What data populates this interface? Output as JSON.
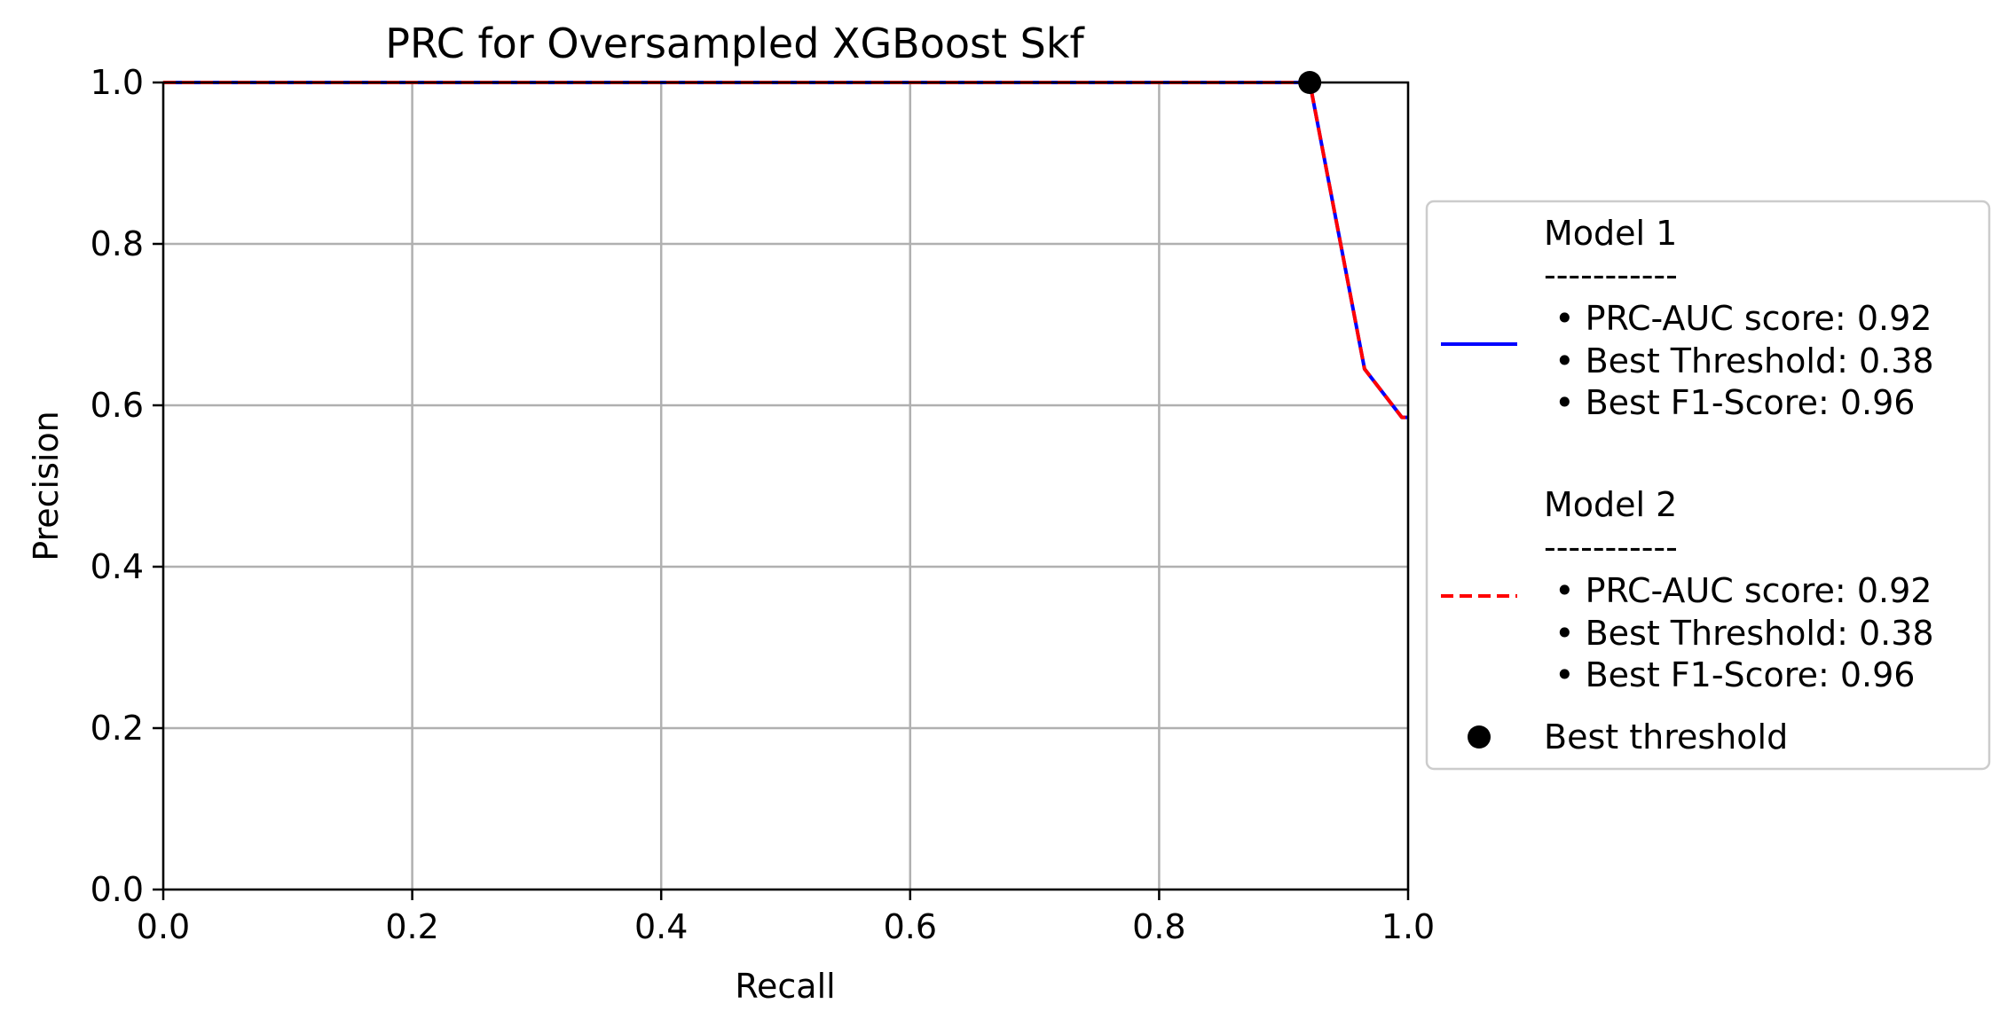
{
  "chart_data": {
    "type": "line",
    "title": "PRC for Oversampled XGBoost Skf",
    "xlabel": "Recall",
    "ylabel": "Precision",
    "xlim": [
      0.0,
      1.0
    ],
    "ylim": [
      0.0,
      1.0
    ],
    "x_ticks": [
      "0.0",
      "0.2",
      "0.4",
      "0.6",
      "0.8",
      "1.0"
    ],
    "y_ticks": [
      "0.0",
      "0.2",
      "0.4",
      "0.6",
      "0.8",
      "1.0"
    ],
    "grid": true,
    "legend_position": "outside right",
    "series": [
      {
        "color": "#0000ff",
        "line_style": "solid",
        "x": [
          0.0,
          0.921,
          0.965,
          0.995,
          1.0
        ],
        "y": [
          1.0,
          1.0,
          0.645,
          0.585,
          0.585
        ],
        "legend_lines": [
          "Model 1",
          "-----------",
          " • PRC-AUC score: 0.92",
          " • Best Threshold: 0.38",
          " • Best F1-Score: 0.96"
        ]
      },
      {
        "color": "#ff0000",
        "line_style": "dashed",
        "x": [
          0.0,
          0.921,
          0.965,
          0.995,
          1.0
        ],
        "y": [
          1.0,
          1.0,
          0.645,
          0.585,
          0.585
        ],
        "legend_lines": [
          "Model 2",
          "-----------",
          " • PRC-AUC score: 0.92",
          " • Best Threshold: 0.38",
          " • Best F1-Score: 0.96"
        ]
      }
    ],
    "markers": [
      {
        "name": "Best threshold",
        "x": 0.921,
        "y": 1.0,
        "color": "#000000"
      }
    ]
  }
}
